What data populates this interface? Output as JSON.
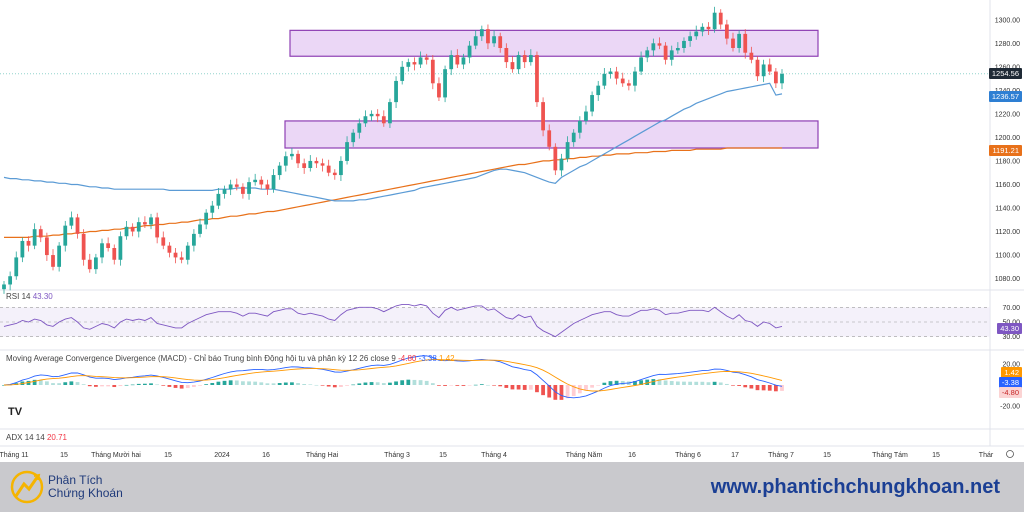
{
  "chart_data": {
    "type": "candlestick",
    "price_axis": {
      "ticks": [
        "1300.00",
        "1280.00",
        "1260.00",
        "1240.00",
        "1220.00",
        "1200.00",
        "1180.00",
        "1160.00",
        "1140.00",
        "1120.00",
        "1100.00",
        "1080.00"
      ],
      "ylim": [
        1072,
        1310
      ]
    },
    "x_ticks": [
      "Tháng 11",
      "15",
      "Tháng Mười hai",
      "15",
      "2024",
      "16",
      "Tháng Hai",
      "Tháng 3",
      "15",
      "Tháng 4",
      "Tháng Năm",
      "16",
      "Tháng 6",
      "17",
      "Tháng 7",
      "15",
      "Tháng Tám",
      "15",
      "Thár"
    ],
    "price_labels": {
      "last": "1254.56",
      "ma_short": "1236.57",
      "ma_long": "1191.21"
    },
    "colors": {
      "up": "#26a69a",
      "down": "#ef5350",
      "ma_short": "#5b9bd5",
      "ma_long": "#e8711a",
      "zone_fill": "#e7d0f5",
      "zone_stroke": "#8e3fb3"
    },
    "zones": [
      {
        "low": 1269,
        "high": 1291
      },
      {
        "low": 1191,
        "high": 1214
      }
    ],
    "closes": [
      1075,
      1082,
      1098,
      1112,
      1108,
      1122,
      1115,
      1100,
      1090,
      1108,
      1125,
      1132,
      1118,
      1096,
      1088,
      1098,
      1110,
      1106,
      1096,
      1116,
      1124,
      1120,
      1128,
      1126,
      1132,
      1115,
      1108,
      1102,
      1098,
      1096,
      1108,
      1118,
      1126,
      1136,
      1142,
      1152,
      1156,
      1160,
      1158,
      1152,
      1162,
      1164,
      1160,
      1156,
      1168,
      1176,
      1184,
      1186,
      1178,
      1174,
      1180,
      1178,
      1176,
      1170,
      1168,
      1180,
      1196,
      1204,
      1212,
      1218,
      1220,
      1218,
      1212,
      1230,
      1248,
      1260,
      1264,
      1262,
      1268,
      1266,
      1246,
      1234,
      1258,
      1270,
      1262,
      1268,
      1278,
      1286,
      1292,
      1280,
      1286,
      1276,
      1264,
      1258,
      1270,
      1264,
      1270,
      1230,
      1206,
      1192,
      1172,
      1182,
      1196,
      1204,
      1214,
      1222,
      1236,
      1244,
      1254,
      1256,
      1250,
      1246,
      1244,
      1256,
      1268,
      1274,
      1280,
      1278,
      1266,
      1274,
      1276,
      1282,
      1286,
      1290,
      1294,
      1292,
      1306,
      1296,
      1284,
      1276,
      1288,
      1272,
      1266,
      1252,
      1262,
      1256,
      1246,
      1254
    ],
    "ma_short": [
      1166,
      1165,
      1165,
      1164,
      1164,
      1163,
      1163,
      1162,
      1162,
      1161,
      1161,
      1160,
      1160,
      1159,
      1158,
      1158,
      1157,
      1157,
      1156,
      1156,
      1156,
      1156,
      1156,
      1156,
      1156,
      1156,
      1156,
      1155,
      1155,
      1155,
      1155,
      1155,
      1155,
      1155,
      1155,
      1156,
      1156,
      1156,
      1157,
      1157,
      1157,
      1157,
      1156,
      1156,
      1156,
      1155,
      1154,
      1153,
      1152,
      1151,
      1150,
      1149,
      1148,
      1147,
      1146,
      1146,
      1146,
      1146,
      1147,
      1147,
      1148,
      1149,
      1150,
      1151,
      1152,
      1153,
      1154,
      1155,
      1157,
      1158,
      1159,
      1160,
      1161,
      1162,
      1163,
      1164,
      1165,
      1166,
      1168,
      1170,
      1172,
      1173,
      1173,
      1172,
      1171,
      1170,
      1168,
      1166,
      1164,
      1162,
      1161,
      1166,
      1169,
      1172,
      1175,
      1177,
      1180,
      1183,
      1186,
      1189,
      1192,
      1195,
      1198,
      1201,
      1204,
      1207,
      1210,
      1213,
      1215,
      1218,
      1221,
      1224,
      1226,
      1229,
      1231,
      1233,
      1235,
      1237,
      1239,
      1240,
      1241,
      1242,
      1243,
      1244,
      1245,
      1246,
      1236,
      1237
    ],
    "ma_long": [
      1115,
      1115,
      1115,
      1115,
      1115,
      1116,
      1116,
      1116,
      1117,
      1117,
      1118,
      1118,
      1119,
      1119,
      1120,
      1120,
      1121,
      1121,
      1122,
      1122,
      1123,
      1123,
      1124,
      1125,
      1125,
      1126,
      1126,
      1127,
      1127,
      1128,
      1128,
      1129,
      1130,
      1130,
      1131,
      1131,
      1132,
      1133,
      1133,
      1134,
      1135,
      1135,
      1136,
      1137,
      1137,
      1138,
      1139,
      1140,
      1141,
      1142,
      1143,
      1144,
      1145,
      1146,
      1147,
      1148,
      1149,
      1150,
      1151,
      1152,
      1153,
      1154,
      1155,
      1156,
      1157,
      1158,
      1159,
      1160,
      1161,
      1162,
      1163,
      1164,
      1165,
      1166,
      1167,
      1168,
      1169,
      1170,
      1171,
      1172,
      1173,
      1174,
      1175,
      1176,
      1177,
      1177,
      1178,
      1179,
      1180,
      1180,
      1181,
      1181,
      1182,
      1182,
      1183,
      1183,
      1184,
      1184,
      1185,
      1185,
      1186,
      1186,
      1186,
      1187,
      1187,
      1187,
      1188,
      1188,
      1188,
      1189,
      1189,
      1189,
      1189,
      1190,
      1190,
      1190,
      1190,
      1190,
      1191,
      1191,
      1191,
      1191,
      1191,
      1191,
      1191,
      1191,
      1191,
      1191
    ],
    "rsi": {
      "label": "RSI",
      "period": "14",
      "value": "43.30",
      "ticks": [
        "70.00",
        "50.00",
        "30.00"
      ],
      "values": [
        44,
        46,
        48,
        52,
        50,
        54,
        52,
        46,
        44,
        50,
        54,
        56,
        50,
        42,
        40,
        44,
        48,
        46,
        42,
        50,
        54,
        52,
        54,
        52,
        56,
        48,
        46,
        44,
        42,
        42,
        48,
        52,
        56,
        60,
        62,
        64,
        64,
        64,
        62,
        58,
        62,
        62,
        60,
        58,
        64,
        66,
        68,
        68,
        62,
        60,
        62,
        60,
        58,
        54,
        52,
        60,
        66,
        68,
        70,
        70,
        70,
        68,
        64,
        68,
        72,
        74,
        74,
        72,
        74,
        72,
        62,
        56,
        66,
        70,
        66,
        68,
        70,
        72,
        72,
        66,
        68,
        62,
        56,
        54,
        60,
        56,
        58,
        44,
        38,
        34,
        30,
        36,
        42,
        48,
        52,
        56,
        60,
        62,
        64,
        64,
        60,
        58,
        58,
        62,
        66,
        66,
        68,
        66,
        60,
        62,
        62,
        64,
        66,
        66,
        66,
        64,
        70,
        64,
        58,
        54,
        60,
        52,
        50,
        44,
        50,
        48,
        42,
        44
      ]
    },
    "macd": {
      "label": "Moving Average Convergence Divergence (MACD) - Chỉ báo Trung bình Động hội tụ và phân kỳ",
      "params": "12 26 close 9",
      "hist_value": "-4.80",
      "macd_value": "-3.38",
      "signal_value": "1.42",
      "ticks": [
        "20.00",
        "-20.00"
      ],
      "tags": [
        "1.42",
        "-3.38",
        "-4.80"
      ]
    },
    "adx": {
      "label": "ADX",
      "params": "14 14",
      "value": "20.71"
    }
  },
  "branding": {
    "name_line1": "Phân Tích",
    "name_line2": "Chứng Khoán",
    "website": "www.phantichchungkhoan.net",
    "tv_mark": "TV"
  }
}
